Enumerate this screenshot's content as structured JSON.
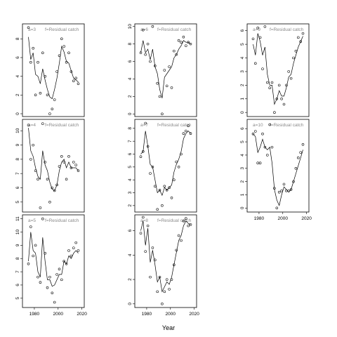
{
  "chart_data": {
    "type": "scatter",
    "xlabel": "Year",
    "panels": [
      {
        "strip_a": "a=3",
        "strip_f": "f=Residual catch",
        "ylim": [
          -0.3,
          9.6
        ],
        "yticks": [
          0,
          2,
          4,
          6,
          8
        ],
        "show_x_ticks": false,
        "x": [
          1975,
          1977,
          1979,
          1981,
          1983,
          1985,
          1987,
          1989,
          1991,
          1993,
          1995,
          1997,
          1999,
          2001,
          2003,
          2005,
          2007,
          2009,
          2011,
          2013,
          2015,
          2017
        ],
        "y": [
          9.2,
          5.5,
          7.0,
          2.0,
          5.5,
          2.2,
          6.5,
          4.0,
          2.0,
          0.0,
          0.5,
          1.5,
          4.5,
          6.2,
          8.0,
          7.2,
          5.5,
          6.5,
          4.5,
          3.5,
          3.8,
          3.2
        ],
        "fit": [
          8.2,
          5.8,
          6.5,
          4.2,
          4.0,
          3.2,
          4.8,
          3.6,
          2.6,
          1.8,
          1.6,
          2.6,
          3.8,
          5.4,
          7.2,
          6.6,
          5.6,
          5.4,
          4.6,
          3.8,
          3.6,
          3.4
        ]
      },
      {
        "strip_a": "a=4",
        "strip_f": "f=Residual catch",
        "ylim": [
          4.3,
          10.8
        ],
        "yticks": [
          5,
          6,
          7,
          8,
          9,
          10
        ],
        "show_x_ticks": false,
        "x": [
          1975,
          1977,
          1979,
          1981,
          1983,
          1985,
          1987,
          1989,
          1991,
          1993,
          1995,
          1997,
          1999,
          2001,
          2003,
          2005,
          2007,
          2009,
          2011,
          2013,
          2015,
          2017
        ],
        "y": [
          10.4,
          8.0,
          9.0,
          7.2,
          6.6,
          4.6,
          10.5,
          7.8,
          6.6,
          5.0,
          6.0,
          5.8,
          6.2,
          7.5,
          8.2,
          7.8,
          6.6,
          8.2,
          7.4,
          7.8,
          7.6,
          7.2
        ],
        "fit": [
          10.2,
          8.6,
          8.2,
          7.4,
          6.8,
          6.6,
          8.6,
          7.6,
          7.2,
          6.4,
          5.9,
          5.8,
          6.2,
          7.2,
          7.8,
          8.0,
          7.4,
          7.8,
          7.4,
          7.4,
          7.4,
          7.2
        ]
      },
      {
        "strip_a": "a=5",
        "strip_f": "f=Residual catch",
        "ylim": [
          4.3,
          11.3
        ],
        "yticks": [
          5,
          6,
          7,
          8,
          9,
          10,
          11
        ],
        "show_x_ticks": true,
        "x": [
          1975,
          1977,
          1979,
          1981,
          1983,
          1985,
          1987,
          1989,
          1991,
          1993,
          1995,
          1997,
          1999,
          2001,
          2003,
          2005,
          2007,
          2009,
          2011,
          2013,
          2015,
          2017
        ],
        "y": [
          7.6,
          10.4,
          8.2,
          9.0,
          6.6,
          6.2,
          11.0,
          8.4,
          5.8,
          6.6,
          5.4,
          4.7,
          6.8,
          7.2,
          6.4,
          7.8,
          7.6,
          8.6,
          8.2,
          8.8,
          9.2,
          8.6
        ],
        "fit": [
          7.8,
          10.0,
          8.6,
          8.4,
          7.0,
          6.6,
          9.6,
          7.8,
          6.4,
          6.4,
          5.9,
          6.0,
          6.4,
          6.8,
          6.8,
          7.8,
          7.6,
          8.2,
          8.0,
          8.4,
          8.6,
          8.4
        ]
      },
      {
        "strip_a": "a=6",
        "strip_f": "f=Residual catch",
        "ylim": [
          -0.3,
          10.3
        ],
        "yticks": [
          0,
          2,
          4,
          6,
          8,
          10
        ],
        "show_x_ticks": false,
        "x": [
          1975,
          1977,
          1979,
          1981,
          1983,
          1985,
          1987,
          1989,
          1991,
          1993,
          1995,
          1997,
          1999,
          2001,
          2003,
          2005,
          2007,
          2009,
          2011,
          2013,
          2015,
          2017
        ],
        "y": [
          7.0,
          9.6,
          6.8,
          8.0,
          6.0,
          10.0,
          5.5,
          3.5,
          2.0,
          0.0,
          5.0,
          3.2,
          5.4,
          3.0,
          7.2,
          6.8,
          8.4,
          8.2,
          8.8,
          7.8,
          8.2,
          8.0
        ],
        "fit": [
          7.0,
          8.4,
          7.0,
          7.4,
          6.2,
          7.4,
          5.4,
          4.6,
          2.8,
          1.8,
          4.2,
          4.6,
          5.0,
          5.4,
          6.4,
          6.8,
          7.4,
          7.8,
          8.4,
          8.2,
          8.2,
          8.0
        ]
      },
      {
        "strip_a": "a=7",
        "strip_f": "f=Residual catch",
        "ylim": [
          1.5,
          8.7
        ],
        "yticks": [
          2,
          3,
          4,
          5,
          6,
          7,
          8
        ],
        "show_x_ticks": false,
        "x": [
          1975,
          1977,
          1979,
          1981,
          1983,
          1985,
          1987,
          1989,
          1991,
          1993,
          1995,
          1997,
          1999,
          2001,
          2003,
          2005,
          2007,
          2009,
          2011,
          2013,
          2015,
          2017
        ],
        "y": [
          5.8,
          6.2,
          8.4,
          6.6,
          4.5,
          5.0,
          3.5,
          1.7,
          3.2,
          2.0,
          3.5,
          3.2,
          3.4,
          2.6,
          4.0,
          5.4,
          5.0,
          6.0,
          7.6,
          7.8,
          8.2,
          7.6
        ],
        "fit": [
          6.0,
          6.2,
          7.8,
          6.6,
          5.2,
          5.0,
          4.0,
          3.0,
          3.2,
          2.8,
          3.4,
          3.2,
          3.4,
          3.6,
          4.6,
          5.2,
          5.6,
          6.2,
          7.2,
          7.6,
          7.8,
          7.6
        ]
      },
      {
        "strip_a": "a=8",
        "strip_f": "f=Residual catch",
        "ylim": [
          -0.3,
          7.3
        ],
        "yticks": [
          0,
          2,
          4,
          6
        ],
        "show_x_ticks": true,
        "x": [
          1975,
          1977,
          1979,
          1981,
          1983,
          1985,
          1987,
          1989,
          1991,
          1993,
          1995,
          1997,
          1999,
          2001,
          2003,
          2005,
          2007,
          2009,
          2011,
          2013,
          2015,
          2017
        ],
        "y": [
          5.8,
          7.1,
          4.3,
          6.4,
          2.2,
          4.6,
          3.6,
          1.0,
          2.2,
          0.0,
          1.0,
          2.0,
          1.2,
          2.0,
          3.2,
          4.4,
          5.6,
          5.2,
          6.8,
          7.0,
          6.4,
          6.5
        ],
        "fit": [
          6.0,
          6.8,
          4.8,
          6.2,
          3.4,
          4.4,
          3.2,
          1.8,
          2.2,
          1.0,
          1.4,
          1.8,
          1.6,
          2.2,
          3.2,
          4.2,
          5.2,
          5.6,
          6.4,
          6.8,
          6.6,
          6.5
        ]
      },
      {
        "strip_a": "a=9",
        "strip_f": "f=Residual catch",
        "ylim": [
          -0.3,
          6.5
        ],
        "yticks": [
          0,
          1,
          2,
          3,
          4,
          5,
          6
        ],
        "show_x_ticks": false,
        "x": [
          1975,
          1977,
          1979,
          1981,
          1983,
          1985,
          1987,
          1989,
          1991,
          1993,
          1995,
          1997,
          1999,
          2001,
          2003,
          2005,
          2007,
          2009,
          2011,
          2013,
          2015,
          2017
        ],
        "y": [
          5.4,
          3.6,
          6.2,
          5.5,
          3.2,
          6.3,
          2.2,
          1.8,
          2.2,
          0.0,
          1.0,
          2.0,
          1.0,
          0.6,
          2.0,
          3.0,
          2.5,
          4.0,
          4.5,
          5.5,
          5.2,
          5.8
        ],
        "fit": [
          5.0,
          4.2,
          5.8,
          5.2,
          4.2,
          4.8,
          2.8,
          2.0,
          2.0,
          0.6,
          1.0,
          1.6,
          1.2,
          1.2,
          1.8,
          2.6,
          2.8,
          3.6,
          4.2,
          4.8,
          5.2,
          5.6
        ]
      },
      {
        "strip_a": "a=10",
        "strip_f": "f=Residual catch",
        "ylim": [
          -0.3,
          6.7
        ],
        "yticks": [
          0,
          1,
          2,
          3,
          4,
          5,
          6
        ],
        "show_x_ticks": true,
        "x": [
          1975,
          1977,
          1979,
          1981,
          1983,
          1985,
          1987,
          1989,
          1991,
          1993,
          1995,
          1997,
          1999,
          2001,
          2003,
          2005,
          2007,
          2009,
          2011,
          2013,
          2015,
          2017
        ],
        "y": [
          5.6,
          5.8,
          3.4,
          3.4,
          5.6,
          4.6,
          4.0,
          6.3,
          4.6,
          1.5,
          0.0,
          1.2,
          1.3,
          1.8,
          1.3,
          1.3,
          1.4,
          2.0,
          3.0,
          3.8,
          4.2,
          4.8
        ],
        "fit": [
          5.6,
          5.4,
          4.2,
          4.6,
          5.2,
          4.6,
          4.4,
          4.6,
          3.4,
          1.4,
          0.6,
          0.2,
          1.0,
          1.6,
          1.4,
          1.2,
          1.4,
          2.0,
          2.6,
          3.2,
          3.8,
          4.4
        ]
      }
    ],
    "xlim": [
      1970,
      2022
    ],
    "xticks": [
      1980,
      2000,
      2020
    ]
  }
}
